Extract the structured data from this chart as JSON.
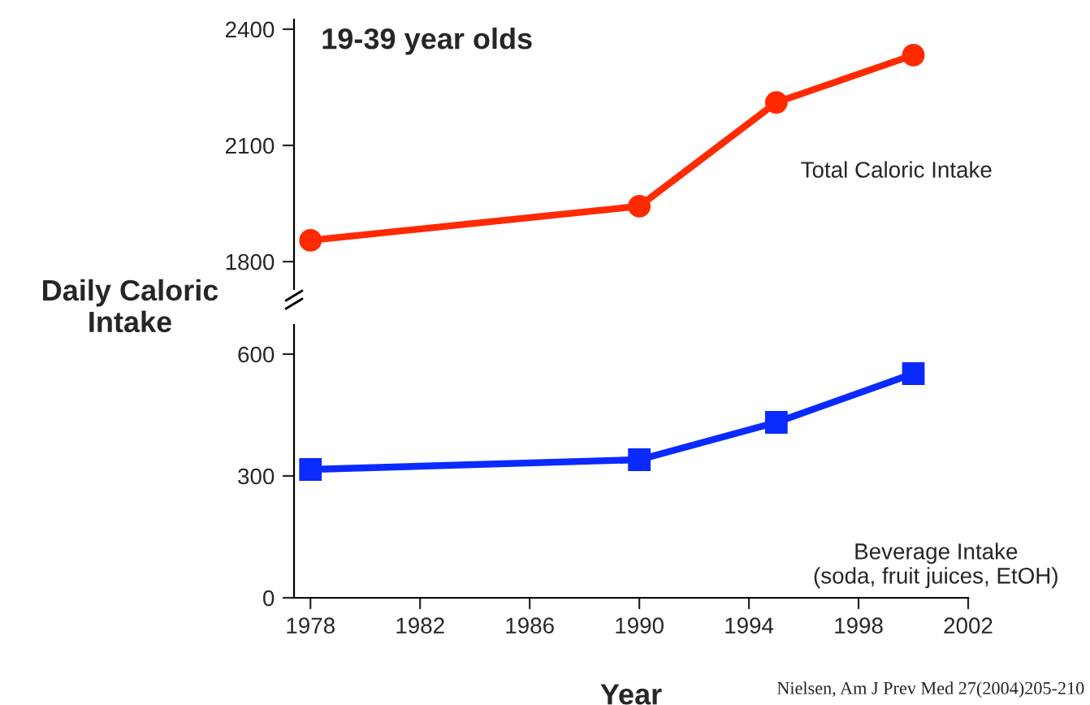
{
  "chart_data": [
    {
      "type": "line",
      "title": "19-39 year olds",
      "ylabel": "Daily Caloric\nIntake",
      "x": [
        1978,
        1990,
        1995,
        2000
      ],
      "series": [
        {
          "name": "Total Caloric Intake",
          "color": "#ff2a00",
          "values": [
            1855,
            1943,
            2211,
            2333
          ],
          "marker": "circle"
        }
      ],
      "xlim": [
        1977.4,
        2002
      ],
      "ylim": [
        1729,
        2425
      ],
      "yticks": [
        1800,
        2100,
        2400
      ],
      "tick_labels": "y",
      "grid": false,
      "line_style": "solid"
    },
    {
      "type": "line",
      "xlabel": "Year",
      "x": [
        1978,
        1990,
        1995,
        2000
      ],
      "series": [
        {
          "name": "Beverage Intake\n(soda, fruit juices, EtOH)",
          "color": "#0a2aff",
          "values": [
            316,
            340,
            432,
            552
          ],
          "marker": "square"
        }
      ],
      "xlim": [
        1977.4,
        2002
      ],
      "ylim": [
        0,
        672
      ],
      "xticks": [
        1978,
        1982,
        1986,
        1990,
        1994,
        1998,
        2002
      ],
      "yticks": [
        0,
        300,
        600
      ],
      "grid": false,
      "line_style": "solid",
      "annotations": [
        "Nielsen, Am J Prev Med 27(2004)205-210"
      ]
    }
  ]
}
